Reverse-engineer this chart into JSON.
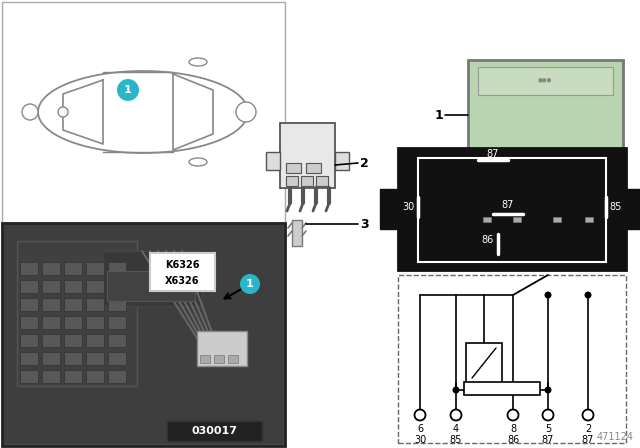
{
  "bg_color": "#ffffff",
  "image_number_photo": "030017",
  "image_number_br": "471124",
  "relay_color": "#b8d4b0",
  "car_outline_color": "#888888",
  "panel_border_color": "#aaaaaa",
  "photo_bg": "#555555",
  "black_box_color": "#111111",
  "cyan_color": "#29b6c8",
  "k_label": "K6326",
  "x_label": "X6326",
  "pin_row1": [
    "6",
    "4",
    "8",
    "5",
    "2"
  ],
  "pin_row2": [
    "30",
    "85",
    "86",
    "87",
    "87"
  ],
  "term_labels_box": [
    "87",
    "30",
    "87",
    "85",
    "86"
  ]
}
